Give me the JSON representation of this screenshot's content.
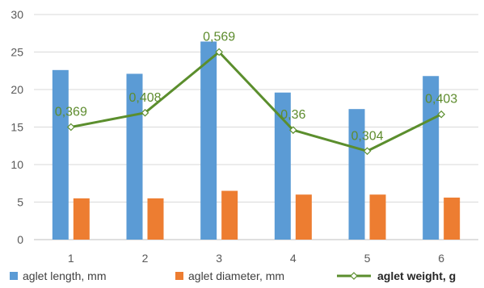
{
  "chart_data": {
    "type": "bar",
    "categories": [
      "1",
      "2",
      "3",
      "4",
      "5",
      "6"
    ],
    "ylim": [
      0,
      30
    ],
    "yticks": [
      0,
      5,
      10,
      15,
      20,
      25,
      30
    ],
    "grid": true,
    "legend_position": "bottom",
    "series": [
      {
        "name": "aglet length, mm",
        "type": "bar",
        "color": "#5b9bd5",
        "values": [
          22.6,
          22.1,
          26.4,
          19.6,
          17.4,
          21.8
        ]
      },
      {
        "name": "aglet diameter, mm",
        "type": "bar",
        "color": "#ed7d31",
        "values": [
          5.5,
          5.5,
          6.5,
          6.0,
          6.0,
          5.6
        ]
      },
      {
        "name": "aglet weight, g",
        "type": "line",
        "color": "#5b8e2d",
        "values": [
          15.0,
          16.9,
          25.0,
          14.6,
          11.8,
          16.7
        ],
        "data_labels": [
          "0,369",
          "0,408",
          "0,569",
          "0,36",
          "0,304",
          "0,403"
        ]
      }
    ]
  }
}
